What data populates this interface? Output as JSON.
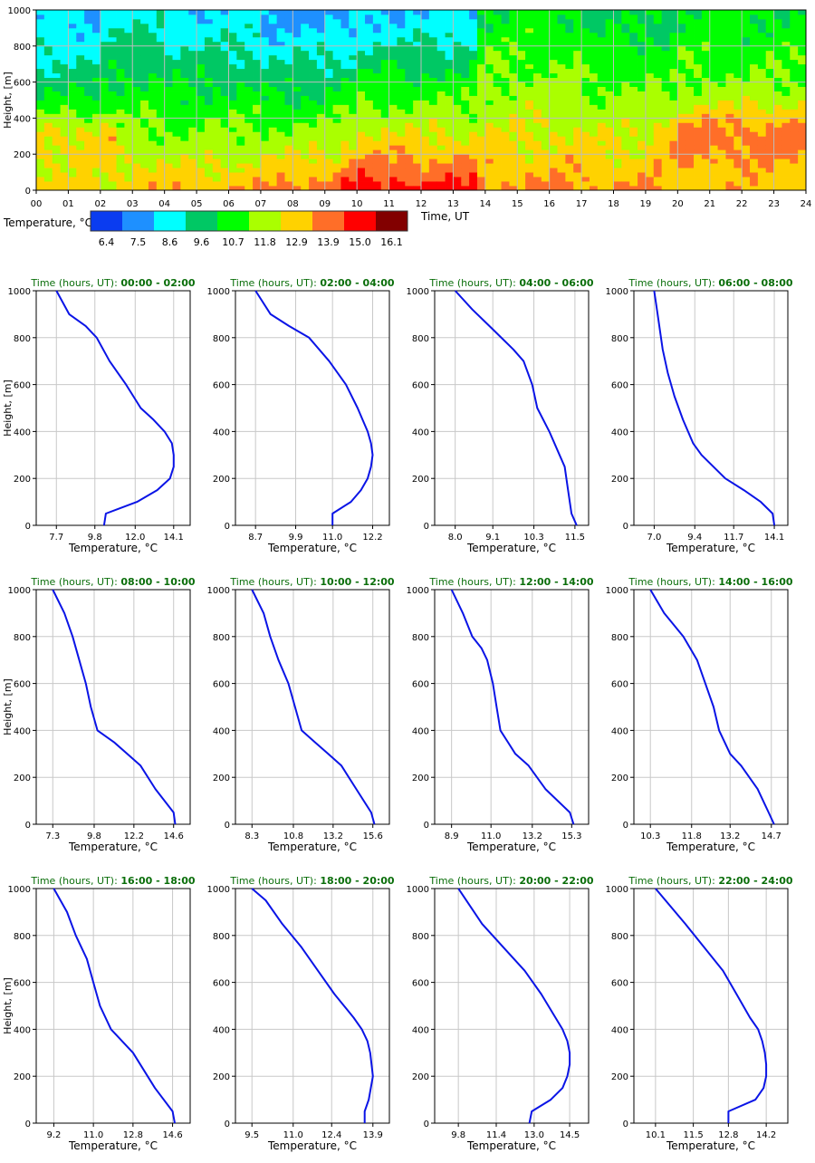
{
  "heatmap": {
    "ylabel": "Height, [m]",
    "xlabel": "Time, UT",
    "y_ticks": [
      "0",
      "200",
      "400",
      "600",
      "800",
      "1000"
    ],
    "x_ticks": [
      "00",
      "01",
      "02",
      "03",
      "04",
      "05",
      "06",
      "07",
      "08",
      "09",
      "10",
      "11",
      "12",
      "13",
      "14",
      "15",
      "16",
      "17",
      "18",
      "19",
      "20",
      "21",
      "22",
      "23",
      "24"
    ],
    "colorbar_label": "Temperature, °C",
    "colorbar_colors": [
      "#0a3cf0",
      "#1e90ff",
      "#00ffff",
      "#00c864",
      "#00ff00",
      "#aaff00",
      "#ffd200",
      "#ff6e28",
      "#ff0000",
      "#820000"
    ],
    "colorbar_ticks": [
      "6.4",
      "7.5",
      "8.6",
      "9.6",
      "10.7",
      "11.8",
      "12.9",
      "13.9",
      "15.0",
      "16.1"
    ]
  },
  "profiles": {
    "ylabel": "Height, [m]",
    "xlabel": "Temperature, °C",
    "y_ticks": [
      "0",
      "200",
      "400",
      "600",
      "800",
      "1000"
    ],
    "title_prefix": "Time (hours, UT): "
  },
  "chart_data": [
    {
      "type": "heatmap",
      "xlabel": "Time, UT",
      "ylabel": "Height, [m]",
      "xlim": [
        0,
        24
      ],
      "ylim": [
        0,
        1000
      ],
      "colorbar": {
        "label": "Temperature, °C",
        "values": [
          6.4,
          7.5,
          8.6,
          9.6,
          10.7,
          11.8,
          12.9,
          13.9,
          15.0,
          16.1
        ]
      },
      "grid": true
    },
    {
      "type": "line",
      "title": "00:00 - 02:00",
      "xlabel": "Temperature, °C",
      "ylabel": "Height, [m]",
      "xticks": [
        "7.7",
        "9.8",
        "12.0",
        "14.1"
      ],
      "xlim": [
        6.6,
        15.0
      ],
      "ylim": [
        0,
        1000
      ],
      "x": [
        10.3,
        10.4,
        12.1,
        13.2,
        13.9,
        14.1,
        14.1,
        14.0,
        13.6,
        13.0,
        12.3,
        11.5,
        10.6,
        9.9,
        9.3,
        8.4,
        7.7
      ],
      "y": [
        0,
        50,
        100,
        150,
        200,
        250,
        300,
        350,
        400,
        450,
        500,
        600,
        700,
        800,
        850,
        900,
        1000
      ]
    },
    {
      "type": "line",
      "title": "02:00 - 04:00",
      "xlabel": "Temperature, °C",
      "ylabel": "Height, [m]",
      "xticks": [
        "8.7",
        "9.9",
        "11.0",
        "12.2"
      ],
      "xlim": [
        8.1,
        12.7
      ],
      "ylim": [
        0,
        1000
      ],
      "x": [
        11.0,
        11.0,
        11.55,
        11.85,
        12.05,
        12.15,
        12.2,
        12.15,
        12.05,
        11.9,
        11.75,
        11.4,
        10.9,
        10.3,
        9.7,
        9.15,
        8.7
      ],
      "y": [
        0,
        50,
        100,
        150,
        200,
        250,
        300,
        350,
        400,
        450,
        500,
        600,
        700,
        800,
        850,
        900,
        1000
      ]
    },
    {
      "type": "line",
      "title": "04:00 - 06:00",
      "xlabel": "Temperature, °C",
      "ylabel": "Height, [m]",
      "xticks": [
        "8.0",
        "9.1",
        "10.3",
        "11.5"
      ],
      "xlim": [
        7.4,
        11.9
      ],
      "ylim": [
        0,
        1000
      ],
      "x": [
        11.55,
        11.4,
        11.3,
        11.2,
        11.05,
        10.75,
        10.4,
        10.25,
        10.0,
        9.7,
        9.0,
        8.5,
        8.0
      ],
      "y": [
        0,
        50,
        150,
        250,
        300,
        400,
        500,
        600,
        700,
        750,
        850,
        920,
        1000
      ]
    },
    {
      "type": "line",
      "title": "06:00 - 08:00",
      "xlabel": "Temperature, °C",
      "ylabel": "Height, [m]",
      "xticks": [
        "7.0",
        "9.4",
        "11.7",
        "14.1"
      ],
      "xlim": [
        5.8,
        14.9
      ],
      "ylim": [
        0,
        1000
      ],
      "x": [
        14.1,
        14.0,
        13.3,
        12.3,
        11.2,
        9.8,
        9.3,
        9.0,
        8.7,
        8.2,
        7.8,
        7.5,
        7.2,
        7.0
      ],
      "y": [
        0,
        50,
        100,
        150,
        200,
        300,
        350,
        400,
        450,
        550,
        650,
        750,
        900,
        1000
      ]
    },
    {
      "type": "line",
      "title": "08:00 - 10:00",
      "xlabel": "Temperature, °C",
      "ylabel": "Height, [m]",
      "xticks": [
        "7.3",
        "9.8",
        "12.2",
        "14.6"
      ],
      "xlim": [
        6.3,
        15.6
      ],
      "ylim": [
        0,
        1000
      ],
      "x": [
        14.7,
        14.6,
        13.5,
        12.6,
        11.8,
        11.0,
        10.0,
        9.6,
        9.3,
        8.9,
        8.5,
        8.0,
        7.3
      ],
      "y": [
        0,
        50,
        150,
        250,
        300,
        350,
        400,
        500,
        600,
        700,
        800,
        900,
        1000
      ]
    },
    {
      "type": "line",
      "title": "10:00 - 12:00",
      "xlabel": "Temperature, °C",
      "ylabel": "Height, [m]",
      "xticks": [
        "8.3",
        "10.8",
        "13.2",
        "15.6"
      ],
      "xlim": [
        7.3,
        16.6
      ],
      "ylim": [
        0,
        1000
      ],
      "x": [
        15.7,
        15.5,
        14.6,
        13.7,
        12.9,
        12.1,
        11.3,
        10.9,
        10.5,
        9.9,
        9.4,
        9.0,
        8.3
      ],
      "y": [
        0,
        50,
        150,
        250,
        300,
        350,
        400,
        500,
        600,
        700,
        800,
        900,
        1000
      ]
    },
    {
      "type": "line",
      "title": "12:00 - 14:00",
      "xlabel": "Temperature, °C",
      "ylabel": "Height, [m]",
      "xticks": [
        "8.9",
        "11.0",
        "13.2",
        "15.3"
      ],
      "xlim": [
        8.0,
        16.2
      ],
      "ylim": [
        0,
        1000
      ],
      "x": [
        15.4,
        15.2,
        13.9,
        13.0,
        12.3,
        11.9,
        11.5,
        11.3,
        11.1,
        10.8,
        10.5,
        10.0,
        9.5,
        8.9
      ],
      "y": [
        0,
        50,
        150,
        250,
        300,
        350,
        400,
        500,
        600,
        700,
        750,
        800,
        900,
        1000
      ]
    },
    {
      "type": "line",
      "title": "14:00 - 16:00",
      "xlabel": "Temperature, °C",
      "ylabel": "Height, [m]",
      "xticks": [
        "10.3",
        "11.8",
        "13.2",
        "14.7"
      ],
      "xlim": [
        9.7,
        15.3
      ],
      "ylim": [
        0,
        1000
      ],
      "x": [
        14.8,
        14.6,
        14.2,
        13.6,
        13.2,
        12.8,
        12.6,
        12.3,
        12.0,
        11.5,
        10.8,
        10.3
      ],
      "y": [
        0,
        50,
        150,
        250,
        300,
        400,
        500,
        600,
        700,
        800,
        900,
        1000
      ]
    },
    {
      "type": "line",
      "title": "16:00 - 18:00",
      "xlabel": "Temperature, °C",
      "ylabel": "Height, [m]",
      "xticks": [
        "9.2",
        "11.0",
        "12.8",
        "14.6"
      ],
      "xlim": [
        8.4,
        15.4
      ],
      "ylim": [
        0,
        1000
      ],
      "x": [
        14.7,
        14.6,
        13.8,
        12.8,
        11.8,
        11.3,
        11.0,
        10.7,
        10.2,
        9.8,
        9.2
      ],
      "y": [
        0,
        50,
        150,
        300,
        400,
        500,
        600,
        700,
        800,
        900,
        1000
      ]
    },
    {
      "type": "line",
      "title": "18:00 - 20:00",
      "xlabel": "Temperature, °C",
      "ylabel": "Height, [m]",
      "xticks": [
        "9.5",
        "11.0",
        "12.4",
        "13.9"
      ],
      "xlim": [
        8.9,
        14.5
      ],
      "ylim": [
        0,
        1000
      ],
      "x": [
        13.6,
        13.6,
        13.75,
        13.9,
        13.85,
        13.8,
        13.7,
        13.5,
        13.2,
        12.5,
        11.9,
        11.3,
        10.6,
        10.0,
        9.5
      ],
      "y": [
        0,
        50,
        100,
        200,
        250,
        300,
        350,
        400,
        450,
        550,
        650,
        750,
        850,
        950,
        1000
      ]
    },
    {
      "type": "line",
      "title": "20:00 - 22:00",
      "xlabel": "Temperature, °C",
      "ylabel": "Height, [m]",
      "xticks": [
        "9.8",
        "11.4",
        "13.0",
        "14.5"
      ],
      "xlim": [
        8.8,
        15.3
      ],
      "ylim": [
        0,
        1000
      ],
      "x": [
        12.8,
        12.9,
        13.7,
        14.2,
        14.4,
        14.5,
        14.5,
        14.4,
        14.2,
        13.9,
        13.3,
        12.6,
        11.7,
        10.8,
        9.8
      ],
      "y": [
        0,
        50,
        100,
        150,
        200,
        250,
        300,
        350,
        400,
        450,
        550,
        650,
        750,
        850,
        1000
      ]
    },
    {
      "type": "line",
      "title": "22:00 - 24:00",
      "xlabel": "Temperature, °C",
      "ylabel": "Height, [m]",
      "xticks": [
        "10.1",
        "11.5",
        "12.8",
        "14.2"
      ],
      "xlim": [
        9.3,
        15.0
      ],
      "ylim": [
        0,
        1000
      ],
      "x": [
        12.8,
        12.8,
        13.8,
        14.1,
        14.2,
        14.2,
        14.15,
        14.05,
        13.9,
        13.6,
        13.1,
        12.6,
        11.9,
        11.2,
        10.1
      ],
      "y": [
        0,
        50,
        100,
        150,
        200,
        250,
        300,
        350,
        400,
        450,
        550,
        650,
        750,
        850,
        1000
      ]
    }
  ]
}
